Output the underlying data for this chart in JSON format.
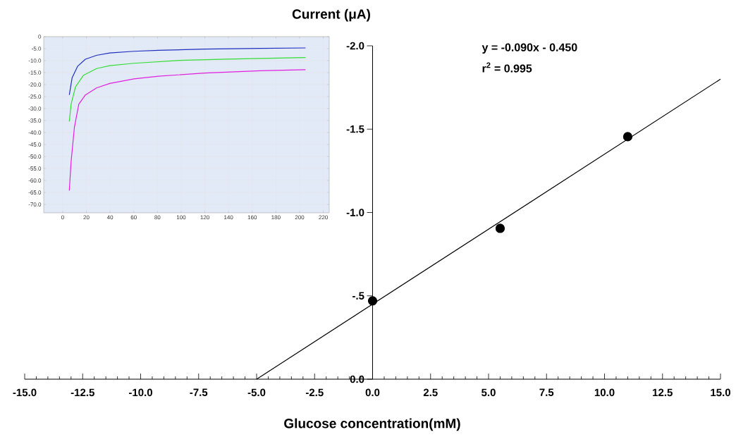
{
  "chart_data": [
    {
      "type": "scatter",
      "xlabel": "Glucose concentration(mM)",
      "ylabel": "Current (μA)",
      "annotations": [
        "y   = -0.090x - 0.450",
        "r$^{2}$ = 0.995"
      ],
      "xlim": [
        -15,
        15
      ],
      "ylim": [
        0,
        -2.0
      ],
      "xticks": [
        {
          "value": -15,
          "label": "-15.0"
        },
        {
          "value": -12.5,
          "label": "-12.5"
        },
        {
          "value": -10,
          "label": "-10.0"
        },
        {
          "value": -7.5,
          "label": "-7.5"
        },
        {
          "value": -5,
          "label": "-5.0"
        },
        {
          "value": -2.5,
          "label": "-2.5"
        },
        {
          "value": 0,
          "label": "0.0"
        },
        {
          "value": 2.5,
          "label": "2.5"
        },
        {
          "value": 5,
          "label": "5.0"
        },
        {
          "value": 7.5,
          "label": "7.5"
        },
        {
          "value": 10,
          "label": "10.0"
        },
        {
          "value": 12.5,
          "label": "12.5"
        },
        {
          "value": 15,
          "label": "15.0"
        }
      ],
      "yticks": [
        {
          "value": -2,
          "label": "-2.0"
        },
        {
          "value": -1.5,
          "label": "-1.5"
        },
        {
          "value": -1,
          "label": "-1.0"
        },
        {
          "value": -0.5,
          "label": "-.5"
        },
        {
          "value": 0,
          "label": "0.0"
        }
      ],
      "series": [
        {
          "type": "scatter",
          "color": "#000000",
          "marker": "circle",
          "x": [
            0,
            5.5,
            11
          ],
          "values": [
            -0.47,
            -0.905,
            -1.455
          ]
        },
        {
          "type": "line",
          "color": "#000000",
          "marker": "none",
          "line_style": "solid",
          "x": [
            -5,
            15
          ],
          "values": [
            0,
            -1.8
          ]
        }
      ]
    },
    {
      "type": "line",
      "grid": true,
      "marker": "none",
      "xlim": [
        -16,
        225
      ],
      "ylim": [
        -73.5,
        0
      ],
      "xticks": [
        0,
        20,
        40,
        60,
        80,
        100,
        120,
        140,
        160,
        180,
        200,
        220
      ],
      "yticks": [
        0,
        {
          "value": -5,
          "label": "-5.0"
        },
        {
          "value": -10,
          "label": "-10.0"
        },
        {
          "value": -15,
          "label": "-15.0"
        },
        {
          "value": -20,
          "label": "-20.0"
        },
        {
          "value": -25,
          "label": "-25.0"
        },
        {
          "value": -30,
          "label": "-30.0"
        },
        {
          "value": -35,
          "label": "-35.0"
        },
        {
          "value": -40,
          "label": "-40.0"
        },
        {
          "value": -45,
          "label": "-45.0"
        },
        {
          "value": -50,
          "label": "-50.0"
        },
        {
          "value": -55,
          "label": "-55.0"
        },
        {
          "value": -60,
          "label": "-60.0"
        },
        {
          "value": -65,
          "label": "-65.0"
        },
        {
          "value": -70,
          "label": "-70.0"
        }
      ],
      "series": [
        {
          "color": "#1f2fbf",
          "x": [
            5.6,
            8.0,
            12.7,
            19.2,
            28.6,
            39.8,
            60.3,
            80.9,
            120,
            166.8,
            205
          ],
          "values": [
            -24.3,
            -17.1,
            -12.3,
            -9.4,
            -7.8,
            -6.8,
            -6.1,
            -5.7,
            -5.2,
            -4.9,
            -4.7
          ]
        },
        {
          "color": "#33dd33",
          "x": [
            5.6,
            7.1,
            10.8,
            17.4,
            28.6,
            39.8,
            60.3,
            99.3,
            138.7,
            205
          ],
          "values": [
            -35.4,
            -28.2,
            -21.0,
            -16.2,
            -13.3,
            -12.1,
            -11.1,
            -9.9,
            -9.4,
            -8.7
          ]
        },
        {
          "color": "#e020e0",
          "x": [
            5.6,
            7.1,
            9.9,
            13.6,
            19.2,
            28.6,
            39.8,
            60.3,
            80.9,
            120,
            166.8,
            205
          ],
          "values": [
            -64.2,
            -52.2,
            -37.8,
            -28.2,
            -24.3,
            -21.4,
            -19.5,
            -17.6,
            -16.5,
            -15.2,
            -14.2,
            -13.8
          ]
        }
      ]
    }
  ]
}
